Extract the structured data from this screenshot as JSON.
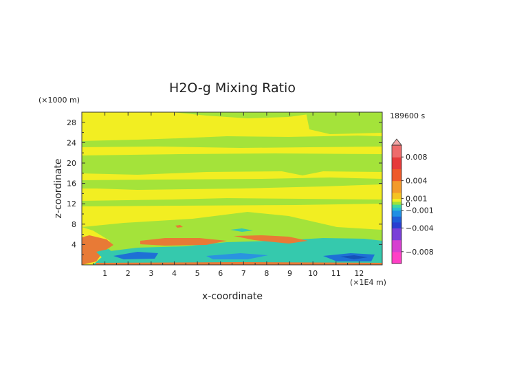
{
  "chart_data": {
    "type": "heatmap",
    "title": "H2O-g Mixing Ratio",
    "xlabel": "x-coordinate",
    "ylabel": "z-coordinate",
    "x_unit": "(×1E4 m)",
    "y_unit": "(×1000 m)",
    "time_label": "189600 s",
    "xlim": [
      0,
      13
    ],
    "ylim": [
      0,
      30
    ],
    "x_ticks": [
      "1",
      "2",
      "3",
      "4",
      "5",
      "6",
      "7",
      "8",
      "9",
      "10",
      "11",
      "12"
    ],
    "y_ticks": [
      "4",
      "8",
      "12",
      "16",
      "20",
      "24",
      "28"
    ],
    "colorbar": {
      "range": [
        -0.01,
        0.01
      ],
      "labels": [
        "0.008",
        "0.004",
        "0.001",
        "0",
        "−0.001",
        "−0.004",
        "−0.008"
      ],
      "label_values": [
        0.008,
        0.004,
        0.001,
        0,
        -0.001,
        -0.004,
        -0.008
      ]
    },
    "fields": [
      {
        "name": "background",
        "value": 0.0003,
        "color": "#f2ee22"
      },
      {
        "name": "slightly-negative bands",
        "value": -0.0002,
        "color": "#a4e33a"
      },
      {
        "name": "low-level moist layer",
        "value": -0.0015,
        "color": "#35c9ad"
      },
      {
        "name": "strong negative pockets",
        "value": -0.004,
        "color": "#1e70d6"
      },
      {
        "name": "positive lenses",
        "value": 0.003,
        "color": "#e87a36"
      }
    ]
  }
}
